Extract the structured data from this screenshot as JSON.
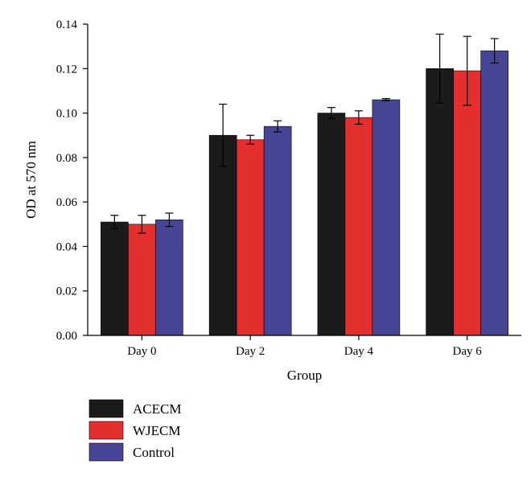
{
  "chart_data": {
    "type": "bar",
    "categories": [
      "Day 0",
      "Day 2",
      "Day 4",
      "Day 6"
    ],
    "series": [
      {
        "name": "ACECM",
        "color": "#1b1b1b",
        "values": [
          0.051,
          0.09,
          0.1,
          0.12
        ],
        "errors": [
          0.003,
          0.014,
          0.0025,
          0.0155
        ]
      },
      {
        "name": "WJECM",
        "color": "#e3302f",
        "values": [
          0.05,
          0.088,
          0.098,
          0.119
        ],
        "errors": [
          0.004,
          0.002,
          0.003,
          0.0155
        ]
      },
      {
        "name": "Control",
        "color": "#474696",
        "values": [
          0.052,
          0.094,
          0.106,
          0.128
        ],
        "errors": [
          0.003,
          0.0025,
          0.0005,
          0.0055
        ]
      }
    ],
    "title": "",
    "xlabel": "Group",
    "ylabel": "OD at 570 nm",
    "ylim": [
      0,
      0.14
    ],
    "yticks": [
      "0.00",
      "0.02",
      "0.04",
      "0.06",
      "0.08",
      "0.10",
      "0.12",
      "0.14"
    ],
    "grid": false,
    "legend_position": "bottom-left"
  }
}
